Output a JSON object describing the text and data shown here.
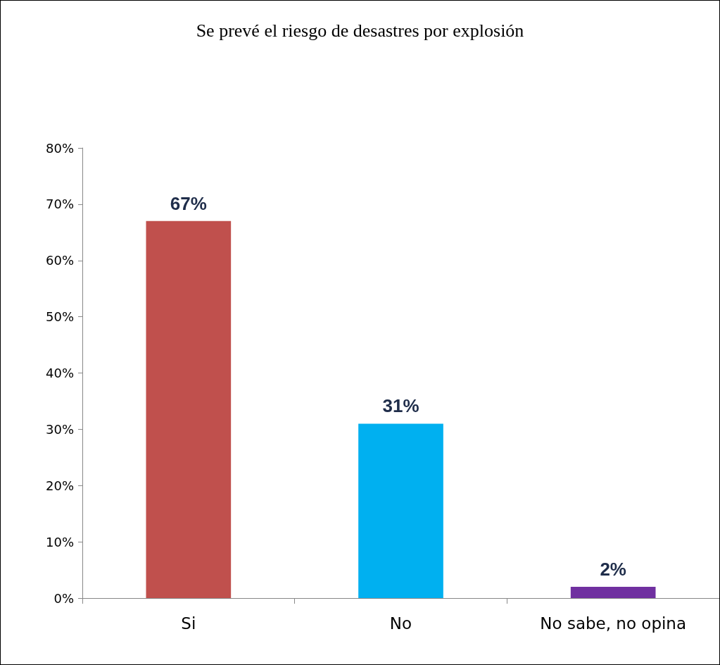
{
  "chart_data": {
    "type": "bar",
    "title": "Se prevé el riesgo de desastres por explosión",
    "categories": [
      "Si",
      "No",
      "No sabe, no opina"
    ],
    "values": [
      67,
      31,
      2
    ],
    "colors": [
      "#c0504d",
      "#00b0f0",
      "#7030a0"
    ],
    "value_labels": [
      "67%",
      "31%",
      "2%"
    ],
    "ylim": [
      0,
      80
    ],
    "yticks": [
      {
        "value": 0,
        "label": "0%"
      },
      {
        "value": 10,
        "label": "10%"
      },
      {
        "value": 20,
        "label": "20%"
      },
      {
        "value": 30,
        "label": "30%"
      },
      {
        "value": 40,
        "label": "40%"
      },
      {
        "value": 50,
        "label": "50%"
      },
      {
        "value": 60,
        "label": "60%"
      },
      {
        "value": 70,
        "label": "70%"
      },
      {
        "value": 80,
        "label": "80%"
      }
    ],
    "grid": false
  }
}
